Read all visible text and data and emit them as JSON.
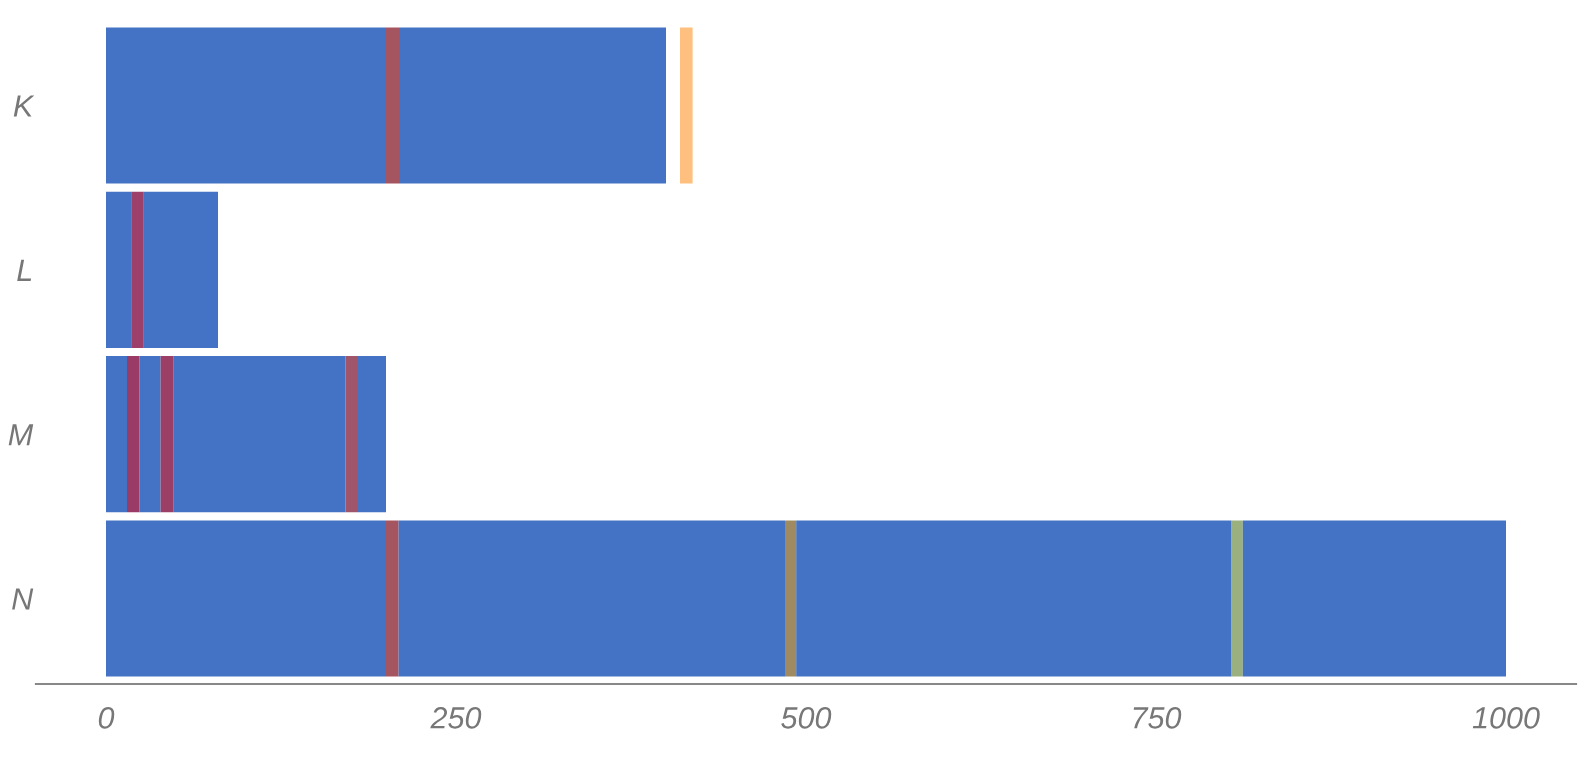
{
  "chart_data": {
    "type": "bar",
    "orientation": "horizontal",
    "categories": [
      "K",
      "L",
      "M",
      "N"
    ],
    "xlim": [
      -50,
      1050
    ],
    "xticks": [
      0,
      250,
      500,
      750,
      1000
    ],
    "grid": false,
    "legend": false,
    "series": [
      {
        "base": [
          0,
          0,
          0,
          0
        ],
        "values": [
          200,
          18,
          15,
          200
        ],
        "colors": [
          "#4472c4",
          "#4472c4",
          "#4472c4",
          "#4472c4"
        ]
      },
      {
        "base": [
          200,
          18,
          15,
          200
        ],
        "values": [
          10,
          9,
          9,
          9
        ],
        "colors": [
          "#a45560",
          "#9c3f6a",
          "#9a3a66",
          "#a55560"
        ]
      },
      {
        "base": [
          210,
          27,
          24,
          209
        ],
        "values": [
          190,
          53,
          15,
          276
        ],
        "colors": [
          "#4472c4",
          "#4472c4",
          "#4472c4",
          "#4472c4"
        ]
      },
      {
        "base": [
          410,
          null,
          39,
          485
        ],
        "values": [
          9,
          null,
          9,
          8
        ],
        "colors": [
          "#ffbf7f",
          null,
          "#9c3f66",
          "#a08a62"
        ]
      },
      {
        "base": [
          null,
          null,
          48,
          493
        ],
        "values": [
          null,
          null,
          123,
          311
        ],
        "colors": [
          null,
          null,
          "#4472c4",
          "#4472c4"
        ]
      },
      {
        "base": [
          null,
          null,
          171,
          804
        ],
        "values": [
          null,
          null,
          9,
          8
        ],
        "colors": [
          null,
          null,
          "#a0566a",
          "#9bb07f"
        ]
      },
      {
        "base": [
          null,
          null,
          180,
          812
        ],
        "values": [
          null,
          null,
          20,
          188
        ],
        "colors": [
          null,
          null,
          "#4472c4",
          "#4472c4"
        ]
      }
    ]
  }
}
